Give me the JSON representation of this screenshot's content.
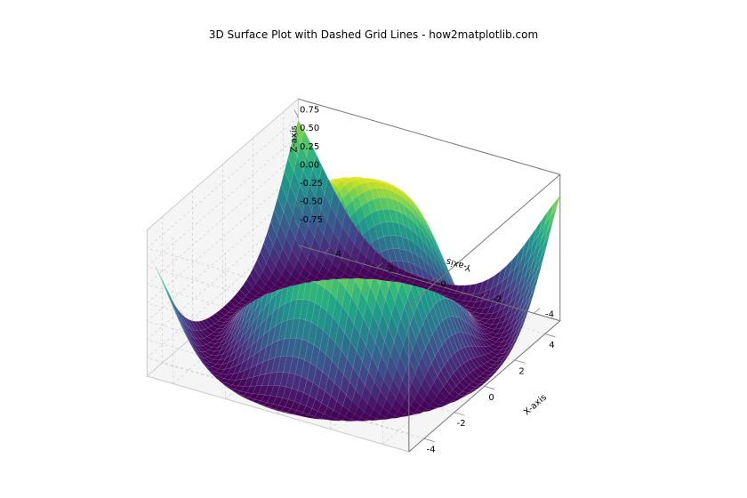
{
  "chart": {
    "type": "3d-surface",
    "title": "3D Surface Plot with Dashed Grid Lines - how2matplotlib.com",
    "title_fontsize": 12,
    "function": "sin(sqrt(x^2+y^2))",
    "background_color": "#ffffff",
    "pane_color": "#f5f5f5",
    "pane_edge_color": "#cccccc",
    "grid_color": "#cccccc",
    "grid_linestyle": "dashed",
    "wireframe_color": "#ffffff",
    "wireframe_alpha": 0.25,
    "colormap": "viridis",
    "cmap_stops": [
      [
        0.0,
        "#440154"
      ],
      [
        0.1,
        "#482475"
      ],
      [
        0.2,
        "#414487"
      ],
      [
        0.3,
        "#355f8d"
      ],
      [
        0.4,
        "#2a788e"
      ],
      [
        0.5,
        "#21918c"
      ],
      [
        0.6,
        "#22a884"
      ],
      [
        0.7,
        "#44bf70"
      ],
      [
        0.8,
        "#7ad151"
      ],
      [
        0.9,
        "#bddf26"
      ],
      [
        1.0,
        "#fde725"
      ]
    ],
    "view": {
      "elev_deg": 30,
      "azim_deg": -60
    },
    "x_axis": {
      "label": "X-axis",
      "min": -5,
      "max": 5,
      "ticks": [
        -4,
        -2,
        0,
        2,
        4
      ],
      "n_surface_samples": 50
    },
    "y_axis": {
      "label": "Y-axis",
      "min": -5,
      "max": 5,
      "ticks": [
        -4,
        -2,
        0,
        2,
        4
      ],
      "n_surface_samples": 50
    },
    "z_axis": {
      "label": "Z-axis",
      "min": -1,
      "max": 1,
      "ticks": [
        -0.75,
        -0.5,
        -0.25,
        0.0,
        0.25,
        0.5,
        0.75
      ]
    },
    "tick_fontsize": 10,
    "label_fontsize": 10
  }
}
